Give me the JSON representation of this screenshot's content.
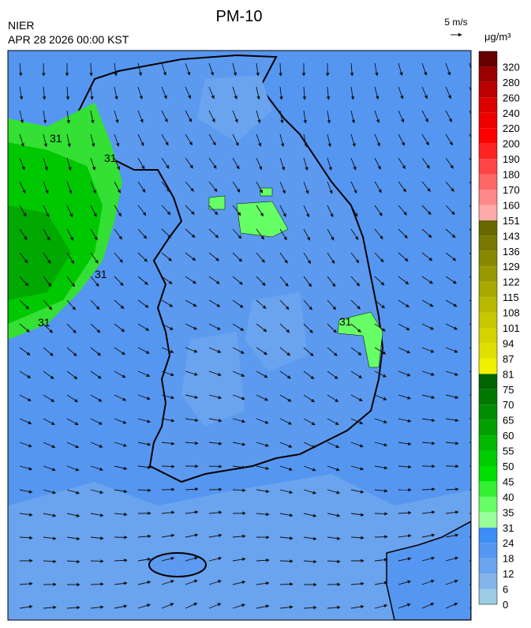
{
  "header": {
    "title": "PM-10",
    "agency": "NIER",
    "datetime": "APR 28 2026 00:00 KST",
    "wind_scale": "5 m/s",
    "unit": "μg/m³"
  },
  "map": {
    "contour_label": "31"
  },
  "colorbar": {
    "labels": [
      0,
      6,
      12,
      18,
      24,
      31,
      35,
      40,
      45,
      50,
      55,
      60,
      65,
      70,
      75,
      81,
      87,
      94,
      101,
      108,
      115,
      122,
      129,
      136,
      143,
      151,
      160,
      170,
      180,
      190,
      200,
      220,
      240,
      260,
      280,
      320
    ],
    "colors": [
      "#9ccbe6",
      "#84b4ea",
      "#6aa3ee",
      "#5596f0",
      "#3c8ef5",
      "#99ff99",
      "#66ff66",
      "#33f033",
      "#00e000",
      "#00cc00",
      "#00b800",
      "#00a000",
      "#008c00",
      "#007800",
      "#006400",
      "#f0f000",
      "#e0e000",
      "#d4d400",
      "#c8c800",
      "#b8b800",
      "#a8a800",
      "#989800",
      "#888800",
      "#787800",
      "#686800",
      "#ffaaaa",
      "#ff8888",
      "#ff6666",
      "#ff4444",
      "#ff2222",
      "#ff0000",
      "#ee0000",
      "#dd0000",
      "#bb0000",
      "#990000",
      "#660000"
    ]
  }
}
